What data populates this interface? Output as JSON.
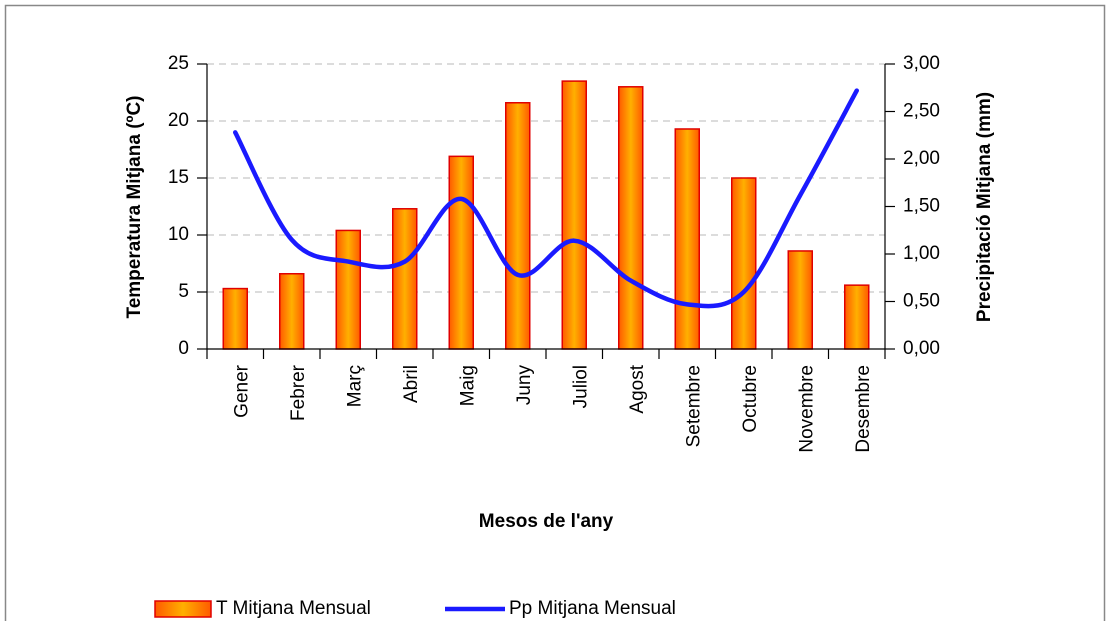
{
  "chart_data": {
    "type": "bar",
    "x_label": "Mesos de l'any",
    "y_label": "Temperatura Mitjana (ºC)",
    "y2_label": "Precipitació Mitjana (mm)",
    "categories": [
      "Gener",
      "Febrer",
      "Març",
      "Abril",
      "Maig",
      "Juny",
      "Juliol",
      "Agost",
      "Setembre",
      "Octubre",
      "Novembre",
      "Desembre"
    ],
    "series": [
      {
        "name": "T Mitjana Mensual",
        "type": "bar",
        "color": "#ff8000",
        "values": [
          5.3,
          6.6,
          10.4,
          12.3,
          16.9,
          21.6,
          23.5,
          23.0,
          19.3,
          15.0,
          8.6,
          5.6
        ]
      },
      {
        "name": "Pp Mitjana Mensual",
        "type": "line",
        "axis": "y2",
        "color": "#1a1aff",
        "values": [
          2.28,
          1.15,
          0.92,
          0.92,
          1.58,
          0.78,
          1.14,
          0.72,
          0.47,
          0.6,
          1.62,
          2.72
        ]
      }
    ],
    "ylim": [
      0,
      25
    ],
    "yticks": [
      0,
      5,
      10,
      15,
      20,
      25
    ],
    "y2lim": [
      0,
      3
    ],
    "y2ticks": [
      {
        "value": 0,
        "label": "0,00"
      },
      {
        "value": 0.5,
        "label": "0,50"
      },
      {
        "value": 1,
        "label": "1,00"
      },
      {
        "value": 1.5,
        "label": "1,50"
      },
      {
        "value": 2,
        "label": "2,00"
      },
      {
        "value": 2.5,
        "label": "2,50"
      },
      {
        "value": 3,
        "label": "3,00"
      }
    ],
    "grid": true,
    "legend": "bottom"
  }
}
